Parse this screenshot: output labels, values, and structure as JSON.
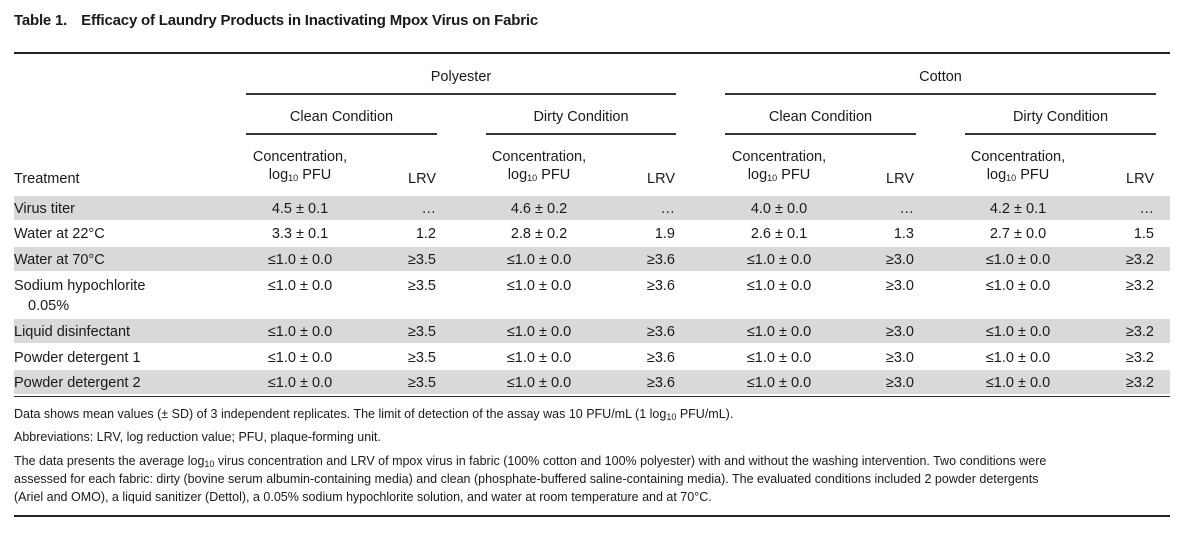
{
  "title": {
    "number": "Table 1.",
    "text": "Efficacy of Laundry Products in Inactivating Mpox Virus on Fabric"
  },
  "header": {
    "fabric_1": "Polyester",
    "fabric_2": "Cotton",
    "condition_clean": "Clean Condition",
    "condition_dirty": "Dirty Condition",
    "treatment": "Treatment",
    "conc_line1": "Concentration,",
    "conc_log": "log",
    "conc_sub": "10",
    "conc_unit": " PFU",
    "lrv": "LRV"
  },
  "rows": [
    {
      "treatment": "Virus titer",
      "treatment_cont": "",
      "shaded": true,
      "values": [
        "4.5 ± 0.1",
        "…",
        "4.6 ± 0.2",
        "…",
        "4.0 ± 0.0",
        "…",
        "4.2 ± 0.1",
        "…"
      ]
    },
    {
      "treatment": "Water at 22°C",
      "treatment_cont": "",
      "shaded": false,
      "values": [
        "3.3 ± 0.1",
        "1.2",
        "2.8 ± 0.2",
        "1.9",
        "2.6 ± 0.1",
        "1.3",
        "2.7 ± 0.0",
        "1.5"
      ]
    },
    {
      "treatment": "Water at 70°C",
      "treatment_cont": "",
      "shaded": true,
      "values": [
        "≤1.0 ± 0.0",
        "≥3.5",
        "≤1.0 ± 0.0",
        "≥3.6",
        "≤1.0 ± 0.0",
        "≥3.0",
        "≤1.0 ± 0.0",
        "≥3.2"
      ]
    },
    {
      "treatment": "Sodium hypochlorite",
      "treatment_cont": "0.05%",
      "shaded": false,
      "values": [
        "≤1.0 ± 0.0",
        "≥3.5",
        "≤1.0 ± 0.0",
        "≥3.6",
        "≤1.0 ± 0.0",
        "≥3.0",
        "≤1.0 ± 0.0",
        "≥3.2"
      ]
    },
    {
      "treatment": "Liquid disinfectant",
      "treatment_cont": "",
      "shaded": true,
      "values": [
        "≤1.0 ± 0.0",
        "≥3.5",
        "≤1.0 ± 0.0",
        "≥3.6",
        "≤1.0 ± 0.0",
        "≥3.0",
        "≤1.0 ± 0.0",
        "≥3.2"
      ]
    },
    {
      "treatment": "Powder detergent 1",
      "treatment_cont": "",
      "shaded": false,
      "values": [
        "≤1.0 ± 0.0",
        "≥3.5",
        "≤1.0 ± 0.0",
        "≥3.6",
        "≤1.0 ± 0.0",
        "≥3.0",
        "≤1.0 ± 0.0",
        "≥3.2"
      ]
    },
    {
      "treatment": "Powder detergent 2",
      "treatment_cont": "",
      "shaded": true,
      "values": [
        "≤1.0 ± 0.0",
        "≥3.5",
        "≤1.0 ± 0.0",
        "≥3.6",
        "≤1.0 ± 0.0",
        "≥3.0",
        "≤1.0 ± 0.0",
        "≥3.2"
      ]
    }
  ],
  "footnotes": {
    "note1_a": "Data shows mean values (± SD) of 3 independent replicates. The limit of detection of the assay was 10 PFU/mL (1 log",
    "note1_sub": "10",
    "note1_b": " PFU/mL).",
    "note2": "Abbreviations: LRV, log reduction value; PFU, plaque-forming unit.",
    "note3_a": "The data presents the average log",
    "note3_sub": "10",
    "note3_b": " virus concentration and LRV of mpox virus in fabric (100% cotton and 100% polyester) with and without the washing intervention. Two conditions were",
    "note3_line2": "assessed for each fabric: dirty (bovine serum albumin-containing media) and clean (phosphate-buffered saline-containing media). The evaluated conditions included 2 powder detergents",
    "note3_line3": "(Ariel and OMO), a liquid sanitizer (Dettol), a 0.05% sodium hypochlorite solution, and water at room temperature and at 70°C."
  }
}
